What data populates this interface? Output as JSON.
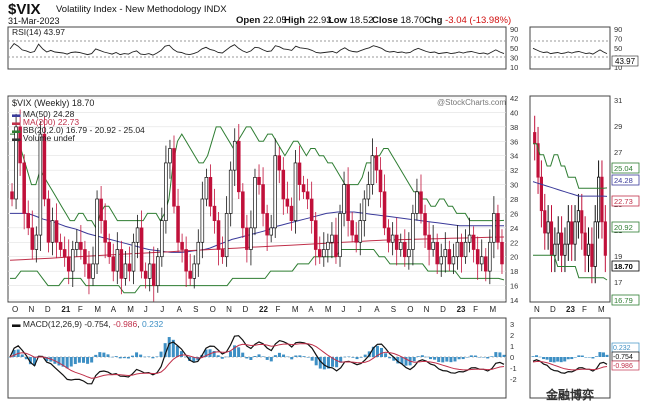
{
  "header": {
    "ticker": "$VIX",
    "name": "Volatility Index - New Methodology  INDX",
    "date": "31-Mar-2023",
    "open_label": "Open",
    "open": "22.05",
    "high_label": "High",
    "high": "22.93",
    "low_label": "Low",
    "low": "18.52",
    "close_label": "Close",
    "close": "18.70",
    "chg_label": "Chg",
    "chg": "-3.04 (-13.98%)"
  },
  "rsi": {
    "label": "RSI(14) 43.97",
    "value": "43.97",
    "ticks": [
      "90",
      "70",
      "50",
      "30",
      "10"
    ]
  },
  "price_panel": {
    "title": "$VIX (Weekly) 18.70",
    "watermark": "@StockCharts.com",
    "legend": [
      {
        "text": "MA(50) 24.28",
        "color": "#3a3a9a"
      },
      {
        "text": "MA(200) 22.73",
        "color": "#c0304a"
      },
      {
        "text": "BB(20,2.0) 16.79 - 20.92 - 25.04",
        "color": "#2e7d32"
      },
      {
        "text": "Volume undef",
        "color": "#333333"
      }
    ],
    "y_ticks": [
      "42",
      "40",
      "38",
      "36",
      "34",
      "32",
      "30",
      "28",
      "26",
      "24",
      "22",
      "20",
      "18",
      "16",
      "14"
    ],
    "right_ticks": [
      "31",
      "29",
      "27",
      "25",
      "23",
      "21",
      "19",
      "17"
    ],
    "value_tags": [
      {
        "text": "25.04",
        "color": "#2e7d32"
      },
      {
        "text": "24.28",
        "color": "#3a3a9a"
      },
      {
        "text": "22.73",
        "color": "#c0304a"
      },
      {
        "text": "20.92",
        "color": "#2e7d32"
      },
      {
        "text": "18.70",
        "color": "#000000"
      },
      {
        "text": "16.79",
        "color": "#2e7d32"
      }
    ],
    "x_labels": [
      "O",
      "N",
      "D",
      "21",
      "F",
      "M",
      "A",
      "M",
      "J",
      "J",
      "A",
      "S",
      "O",
      "N",
      "D",
      "22",
      "F",
      "M",
      "A",
      "M",
      "J",
      "J",
      "A",
      "S",
      "O",
      "N",
      "D",
      "23",
      "F",
      "M"
    ],
    "zoom_x_labels": [
      "N",
      "D",
      "23",
      "F",
      "M"
    ]
  },
  "macd": {
    "label_prefix": "MACD(12,26,9)",
    "v1": "-0.754",
    "v2": "-0.986",
    "v3": "0.232",
    "ticks": [
      "3",
      "2",
      "1",
      "0",
      "-1",
      "-2"
    ],
    "right_tags": [
      "0.232",
      "-0.754",
      "-0.986"
    ]
  },
  "overlay_text": "金融博弈",
  "colors": {
    "candle_up": "#111111",
    "candle_down": "#c0103a",
    "ma50": "#3a3a9a",
    "ma200": "#c0304a",
    "bb": "#2e7d32",
    "hist": "#3d8fc4"
  },
  "chart_data": {
    "type": "candlestick",
    "title": "$VIX (Weekly) 18.70",
    "x_tick_labels": [
      "O",
      "N",
      "D",
      "21",
      "F",
      "M",
      "A",
      "M",
      "J",
      "J",
      "A",
      "S",
      "O",
      "N",
      "D",
      "22",
      "F",
      "M",
      "A",
      "M",
      "J",
      "J",
      "A",
      "S",
      "O",
      "N",
      "D",
      "23",
      "F",
      "M"
    ],
    "ylim": [
      14,
      42
    ],
    "weekly_close": [
      28,
      38,
      33,
      26,
      24,
      21,
      23,
      37,
      28,
      22,
      25,
      22,
      21,
      20,
      18,
      21,
      22,
      21,
      19,
      17,
      19,
      28,
      25,
      22,
      20,
      18,
      21,
      17,
      19,
      18,
      22,
      24,
      18,
      17,
      19,
      16,
      20,
      25,
      33,
      35,
      27,
      22,
      21,
      18,
      17,
      19,
      22,
      28,
      31,
      27,
      25,
      21,
      20,
      26,
      32,
      36,
      29,
      24,
      21,
      24,
      31,
      30,
      26,
      23,
      24,
      34,
      32,
      28,
      27,
      25,
      33,
      30,
      29,
      28,
      25,
      21,
      20,
      21,
      22,
      23,
      20,
      26,
      30,
      25,
      23,
      22,
      25,
      28,
      30,
      34,
      32,
      29,
      24,
      22,
      23,
      21,
      22,
      20,
      21,
      26,
      29,
      26,
      23,
      21,
      22,
      19,
      20,
      21,
      19,
      20,
      22,
      20,
      22,
      23,
      21,
      19,
      20,
      18,
      22,
      26,
      22,
      19
    ],
    "ma50": [
      26,
      26,
      26,
      26,
      25.8,
      25.5,
      25.2,
      25,
      24.8,
      24.5,
      24.2,
      24,
      23.8,
      23.5,
      23.2,
      23,
      22.8,
      22.6,
      22.4,
      22.2,
      22,
      21.8,
      21.6,
      21.4,
      21.2,
      21,
      20.9,
      20.8,
      20.7,
      20.6,
      20.6,
      20.6,
      20.7,
      20.8,
      20.9,
      21,
      21.2,
      21.5,
      21.8,
      22.1,
      22.4,
      22.6,
      22.8,
      23,
      23.2,
      23.4,
      23.6,
      23.9,
      24.2,
      24.4,
      24.6,
      24.8,
      25,
      25.2,
      25.4,
      25.6,
      25.8,
      26,
      26.1,
      26.2,
      26.2,
      26.2,
      26.2,
      26.1,
      26,
      25.9,
      25.8,
      25.7,
      25.6,
      25.5,
      25.4,
      25.3,
      25.2,
      25.1,
      25,
      24.9,
      24.8,
      24.7,
      24.6,
      24.5,
      24.4,
      24.3,
      24.3,
      24.3,
      24.3,
      24.3,
      24.3,
      24.3,
      24.3,
      24.28
    ],
    "ma200": [
      19.5,
      19.6,
      19.7,
      19.8,
      19.9,
      20,
      20.1,
      20.2,
      20.3,
      20.4,
      20.5,
      20.6,
      20.7,
      20.8,
      20.9,
      21,
      21.1,
      21.2,
      21.3,
      21.4,
      21.5,
      21.6,
      21.7,
      21.8,
      21.9,
      22,
      22.1,
      22.2,
      22.3,
      22.35,
      22.4,
      22.45,
      22.5,
      22.55,
      22.6,
      22.65,
      22.7,
      22.73
    ],
    "bb_upper": [
      37,
      37,
      36,
      34,
      32,
      30,
      30,
      32,
      31,
      30,
      29,
      28,
      27,
      26,
      25,
      25,
      26,
      26,
      25,
      25,
      24,
      26,
      27,
      27,
      26,
      25,
      25,
      25,
      25,
      25,
      25,
      25,
      26,
      26,
      26,
      25,
      26,
      28,
      33,
      36,
      37,
      36,
      35,
      34,
      33,
      33,
      34,
      36,
      38,
      38,
      37,
      36,
      35,
      36,
      37,
      38,
      38,
      37,
      36,
      36,
      37,
      37,
      36,
      35,
      34,
      35,
      36,
      36,
      35,
      34,
      35,
      35,
      34,
      34,
      33,
      33,
      32,
      31,
      30,
      30,
      30,
      30,
      31,
      33,
      33,
      34,
      34,
      35,
      35,
      34,
      33,
      32,
      31,
      30,
      29,
      29,
      28,
      28,
      27,
      27,
      28,
      28,
      27,
      27,
      26,
      26,
      26,
      25,
      25,
      25,
      25,
      25,
      25,
      25,
      25,
      25.04
    ],
    "bb_lower": [
      17,
      17,
      18,
      18,
      18,
      18,
      17,
      16,
      16,
      16,
      17,
      17,
      17,
      17,
      16,
      16,
      16,
      16,
      16,
      16,
      16,
      15,
      15,
      15,
      16,
      16,
      16,
      16,
      16,
      16,
      16,
      16,
      16,
      16,
      16,
      16,
      16,
      16,
      16,
      16,
      16,
      17,
      17,
      17,
      17,
      17,
      17,
      17,
      18,
      18,
      18,
      18,
      18,
      19,
      19,
      19,
      20,
      20,
      20,
      20,
      20,
      21,
      21,
      21,
      21,
      21,
      21,
      21,
      20,
      20,
      19,
      19,
      19,
      19,
      19,
      19,
      19,
      18,
      18,
      18,
      18,
      18,
      18,
      17,
      17,
      17,
      17,
      17,
      17,
      17,
      17,
      16.79
    ]
  }
}
